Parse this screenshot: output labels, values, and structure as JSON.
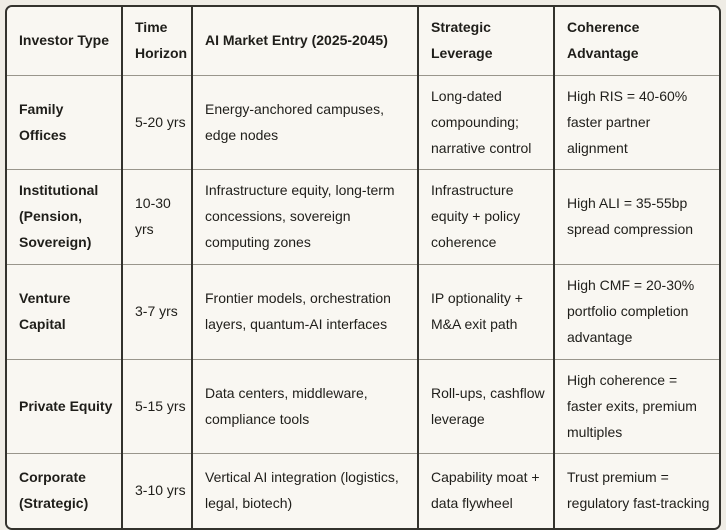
{
  "colors": {
    "page_background": "#efece5",
    "cell_background": "#f9f7f2",
    "outer_border": "#33322d",
    "row_divider": "#99968c",
    "text": "#1f1e1a"
  },
  "chart_data": {
    "type": "table",
    "title": "",
    "columns": [
      "Investor Type",
      "Time Horizon",
      "AI Market Entry (2025-2045)",
      "Strategic Leverage",
      "Coherence Advantage"
    ],
    "rows": [
      [
        "Family Offices",
        "5-20 yrs",
        "Energy-anchored campuses, edge nodes",
        "Long-dated compounding; narrative control",
        "High RIS = 40-60% faster partner alignment"
      ],
      [
        "Institutional (Pension, Sovereign)",
        "10-30 yrs",
        "Infrastructure equity, long-term concessions, sovereign computing zones",
        "Infrastructure equity + policy coherence",
        "High ALI = 35-55bp spread compression"
      ],
      [
        "Venture Capital",
        "3-7 yrs",
        "Frontier models, orchestration layers, quantum-AI interfaces",
        "IP optionality + M&A exit path",
        "High CMF = 20-30% portfolio completion advantage"
      ],
      [
        "Private Equity",
        "5-15 yrs",
        "Data centers, middleware, compliance tools",
        "Roll-ups, cashflow leverage",
        "High coherence = faster exits, premium multiples"
      ],
      [
        "Corporate (Strategic)",
        "3-10 yrs",
        "Vertical AI integration (logistics, legal, biotech)",
        "Capability moat + data flywheel",
        "Trust premium = regulatory fast-tracking"
      ]
    ]
  }
}
